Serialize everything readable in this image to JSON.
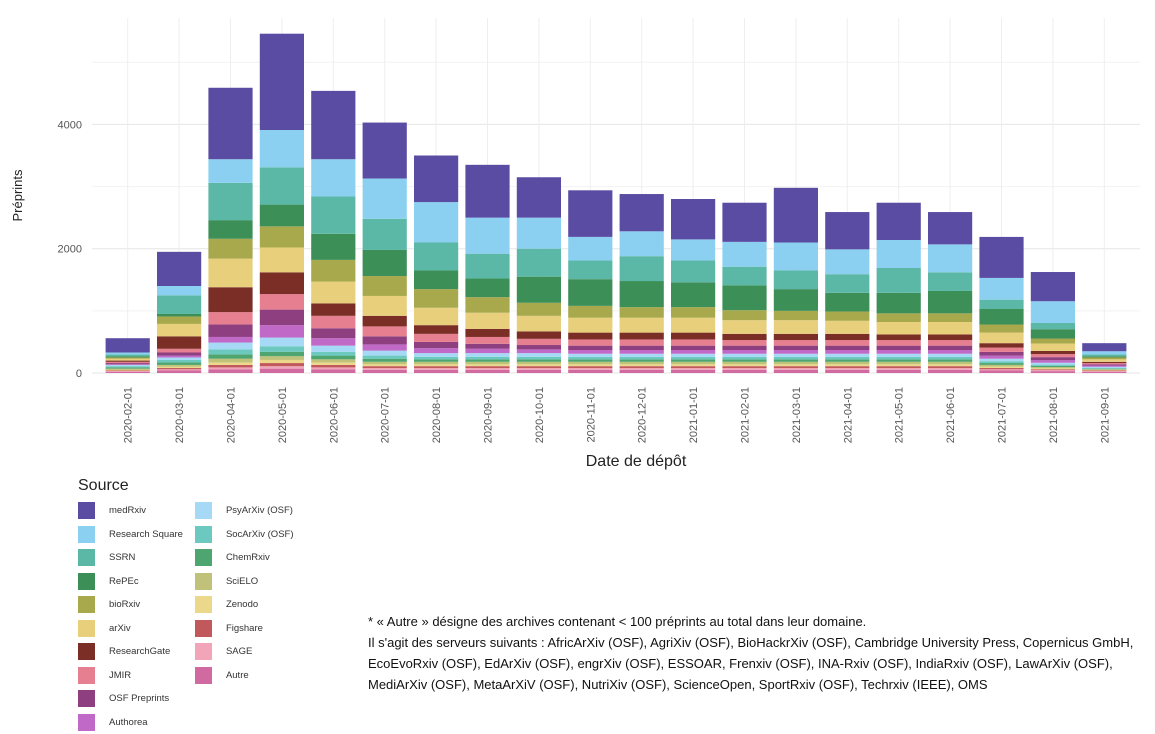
{
  "chart_data": {
    "type": "stacked-bar",
    "xlabel": "Date de dépôt",
    "ylabel": "Préprints",
    "ylim": [
      0,
      5600
    ],
    "yticks": [
      0,
      2000,
      4000
    ],
    "grid": true,
    "legend_position": "bottom-left",
    "categories": [
      "2020-02-01",
      "2020-03-01",
      "2020-04-01",
      "2020-05-01",
      "2020-06-01",
      "2020-07-01",
      "2020-08-01",
      "2020-09-01",
      "2020-10-01",
      "2020-11-01",
      "2020-12-01",
      "2021-01-01",
      "2021-02-01",
      "2021-03-01",
      "2021-04-01",
      "2021-05-01",
      "2021-06-01",
      "2021-07-01",
      "2021-08-01",
      "2021-09-01"
    ],
    "series": [
      {
        "name": "Autre",
        "color": "#d06aa0",
        "values": [
          20,
          40,
          60,
          70,
          60,
          50,
          50,
          50,
          50,
          50,
          50,
          50,
          50,
          50,
          50,
          50,
          50,
          40,
          30,
          20
        ]
      },
      {
        "name": "SAGE",
        "color": "#f2a5b8",
        "values": [
          10,
          20,
          30,
          40,
          30,
          30,
          30,
          30,
          30,
          30,
          30,
          30,
          30,
          30,
          30,
          30,
          30,
          20,
          15,
          10
        ]
      },
      {
        "name": "Figshare",
        "color": "#c0585c",
        "values": [
          10,
          20,
          40,
          50,
          40,
          30,
          30,
          30,
          30,
          30,
          30,
          30,
          30,
          30,
          30,
          30,
          30,
          20,
          15,
          10
        ]
      },
      {
        "name": "Zenodo",
        "color": "#ecd88a",
        "values": [
          10,
          20,
          40,
          50,
          40,
          30,
          30,
          30,
          30,
          30,
          30,
          30,
          30,
          30,
          30,
          30,
          30,
          20,
          15,
          10
        ]
      },
      {
        "name": "SciELO",
        "color": "#c1c27a",
        "values": [
          20,
          30,
          60,
          60,
          50,
          40,
          40,
          40,
          40,
          40,
          40,
          40,
          40,
          40,
          40,
          40,
          40,
          30,
          20,
          10
        ]
      },
      {
        "name": "ChemRxiv",
        "color": "#4fa570",
        "values": [
          20,
          40,
          70,
          70,
          60,
          50,
          40,
          40,
          40,
          40,
          40,
          40,
          40,
          40,
          40,
          40,
          40,
          30,
          20,
          10
        ]
      },
      {
        "name": "SocArXiv (OSF)",
        "color": "#6cc9bf",
        "values": [
          20,
          40,
          80,
          90,
          60,
          50,
          40,
          40,
          40,
          40,
          40,
          40,
          40,
          40,
          40,
          40,
          40,
          30,
          20,
          10
        ]
      },
      {
        "name": "PsyArXiv (OSF)",
        "color": "#a6d9f5",
        "values": [
          20,
          40,
          110,
          140,
          100,
          80,
          60,
          60,
          60,
          50,
          50,
          50,
          50,
          50,
          50,
          50,
          50,
          40,
          30,
          20
        ]
      },
      {
        "name": "Authorea",
        "color": "#c069c6",
        "values": [
          10,
          30,
          90,
          200,
          120,
          100,
          80,
          70,
          60,
          60,
          60,
          60,
          60,
          60,
          60,
          60,
          60,
          50,
          40,
          20
        ]
      },
      {
        "name": "OSF Preprints",
        "color": "#8e3f80",
        "values": [
          20,
          50,
          200,
          250,
          160,
          130,
          100,
          80,
          70,
          70,
          70,
          70,
          70,
          70,
          70,
          70,
          70,
          60,
          50,
          20
        ]
      },
      {
        "name": "JMIR",
        "color": "#e67f8f",
        "values": [
          20,
          60,
          200,
          250,
          200,
          160,
          130,
          110,
          100,
          100,
          100,
          100,
          90,
          90,
          90,
          90,
          90,
          70,
          50,
          20
        ]
      },
      {
        "name": "ResearchGate",
        "color": "#7a2e26",
        "values": [
          20,
          200,
          400,
          350,
          200,
          170,
          140,
          130,
          120,
          110,
          110,
          110,
          100,
          100,
          100,
          90,
          90,
          70,
          50,
          20
        ]
      },
      {
        "name": "arXiv",
        "color": "#e8cf7c",
        "values": [
          30,
          200,
          460,
          400,
          350,
          320,
          280,
          260,
          250,
          240,
          240,
          240,
          220,
          220,
          210,
          200,
          200,
          170,
          120,
          40
        ]
      },
      {
        "name": "bioRxiv",
        "color": "#a8a94d",
        "values": [
          20,
          120,
          320,
          340,
          350,
          320,
          300,
          250,
          210,
          190,
          170,
          170,
          160,
          150,
          150,
          140,
          140,
          130,
          80,
          30
        ]
      },
      {
        "name": "RePEc",
        "color": "#3d8f58",
        "values": [
          20,
          40,
          300,
          350,
          420,
          420,
          300,
          300,
          420,
          430,
          420,
          400,
          400,
          350,
          300,
          330,
          360,
          250,
          150,
          20
        ]
      },
      {
        "name": "SSRN",
        "color": "#5cb8a6",
        "values": [
          30,
          300,
          600,
          600,
          600,
          500,
          450,
          400,
          450,
          300,
          400,
          350,
          300,
          300,
          300,
          400,
          300,
          150,
          100,
          30
        ]
      },
      {
        "name": "Research Square",
        "color": "#8bd0f0",
        "values": [
          30,
          150,
          380,
          600,
          600,
          650,
          650,
          580,
          500,
          380,
          400,
          340,
          400,
          450,
          400,
          450,
          450,
          350,
          350,
          50
        ]
      },
      {
        "name": "medRxiv",
        "color": "#5b4ca3",
        "values": [
          230,
          550,
          1150,
          1550,
          1100,
          900,
          750,
          850,
          650,
          750,
          600,
          650,
          630,
          880,
          600,
          600,
          520,
          660,
          470,
          130
        ]
      }
    ]
  },
  "legend": {
    "title": "Source",
    "column1": [
      "medRxiv",
      "Research Square",
      "SSRN",
      "RePEc",
      "bioRxiv",
      "arXiv",
      "ResearchGate",
      "JMIR",
      "OSF Preprints",
      "Authorea"
    ],
    "column2": [
      "PsyArXiv (OSF)",
      "SocArXiv (OSF)",
      "ChemRxiv",
      "SciELO",
      "Zenodo",
      "Figshare",
      "SAGE",
      "Autre"
    ]
  },
  "note": {
    "line1": "* « Autre » désigne des archives contenant < 100 préprints au total dans leur domaine.",
    "line2": "Il s'agit des serveurs suivants : AfricArXiv (OSF), AgriXiv (OSF), BioHackrXiv (OSF), Cambridge University Press, Copernicus GmbH, EcoEvoRxiv (OSF), EdArXiv (OSF), engrXiv (OSF), ESSOAR, Frenxiv (OSF), INA-Rxiv (OSF), IndiaRxiv (OSF), LawArXiv (OSF), MediArXiv (OSF), MetaArXiV (OSF), NutriXiv (OSF), ScienceOpen, SportRxiv (OSF), Techrxiv (IEEE), OMS"
  }
}
